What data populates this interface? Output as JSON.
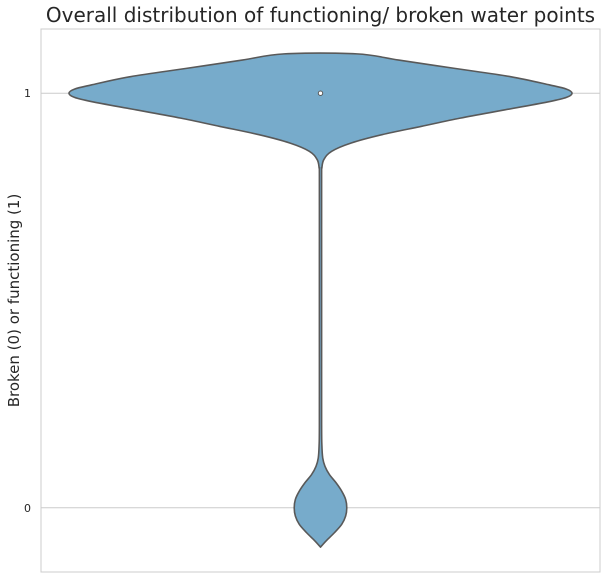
{
  "chart_data": {
    "type": "violin",
    "title": "Overall distribution of functioning/ broken water points",
    "xlabel": "",
    "ylabel": "Broken (0) or functioning (1)",
    "ylim": [
      -0.155,
      1.155
    ],
    "yticks": [
      0,
      1
    ],
    "ytick_labels": [
      "0",
      "1"
    ],
    "grid": "horizontal",
    "fill_color": "#77abcb",
    "edge_color": "#595959",
    "frame_color": "#cccccc",
    "median": 1,
    "density_profile": [
      {
        "y": -0.095,
        "half_width": 0.0
      },
      {
        "y": -0.08,
        "half_width": 0.01
      },
      {
        "y": -0.06,
        "half_width": 0.025
      },
      {
        "y": -0.04,
        "half_width": 0.038
      },
      {
        "y": -0.02,
        "half_width": 0.045
      },
      {
        "y": 0.0,
        "half_width": 0.047
      },
      {
        "y": 0.02,
        "half_width": 0.045
      },
      {
        "y": 0.04,
        "half_width": 0.038
      },
      {
        "y": 0.06,
        "half_width": 0.028
      },
      {
        "y": 0.08,
        "half_width": 0.016
      },
      {
        "y": 0.1,
        "half_width": 0.008
      },
      {
        "y": 0.12,
        "half_width": 0.004
      },
      {
        "y": 0.15,
        "half_width": 0.0025
      },
      {
        "y": 0.2,
        "half_width": 0.002
      },
      {
        "y": 0.4,
        "half_width": 0.002
      },
      {
        "y": 0.6,
        "half_width": 0.002
      },
      {
        "y": 0.8,
        "half_width": 0.002
      },
      {
        "y": 0.82,
        "half_width": 0.0025
      },
      {
        "y": 0.84,
        "half_width": 0.006
      },
      {
        "y": 0.86,
        "half_width": 0.02
      },
      {
        "y": 0.88,
        "half_width": 0.055
      },
      {
        "y": 0.9,
        "half_width": 0.11
      },
      {
        "y": 0.92,
        "half_width": 0.18
      },
      {
        "y": 0.94,
        "half_width": 0.25
      },
      {
        "y": 0.96,
        "half_width": 0.33
      },
      {
        "y": 0.98,
        "half_width": 0.41
      },
      {
        "y": 0.99,
        "half_width": 0.44
      },
      {
        "y": 1.0,
        "half_width": 0.45
      },
      {
        "y": 1.01,
        "half_width": 0.44
      },
      {
        "y": 1.02,
        "half_width": 0.41
      },
      {
        "y": 1.04,
        "half_width": 0.34
      },
      {
        "y": 1.06,
        "half_width": 0.24
      },
      {
        "y": 1.08,
        "half_width": 0.14
      },
      {
        "y": 1.095,
        "half_width": 0.065
      }
    ]
  }
}
